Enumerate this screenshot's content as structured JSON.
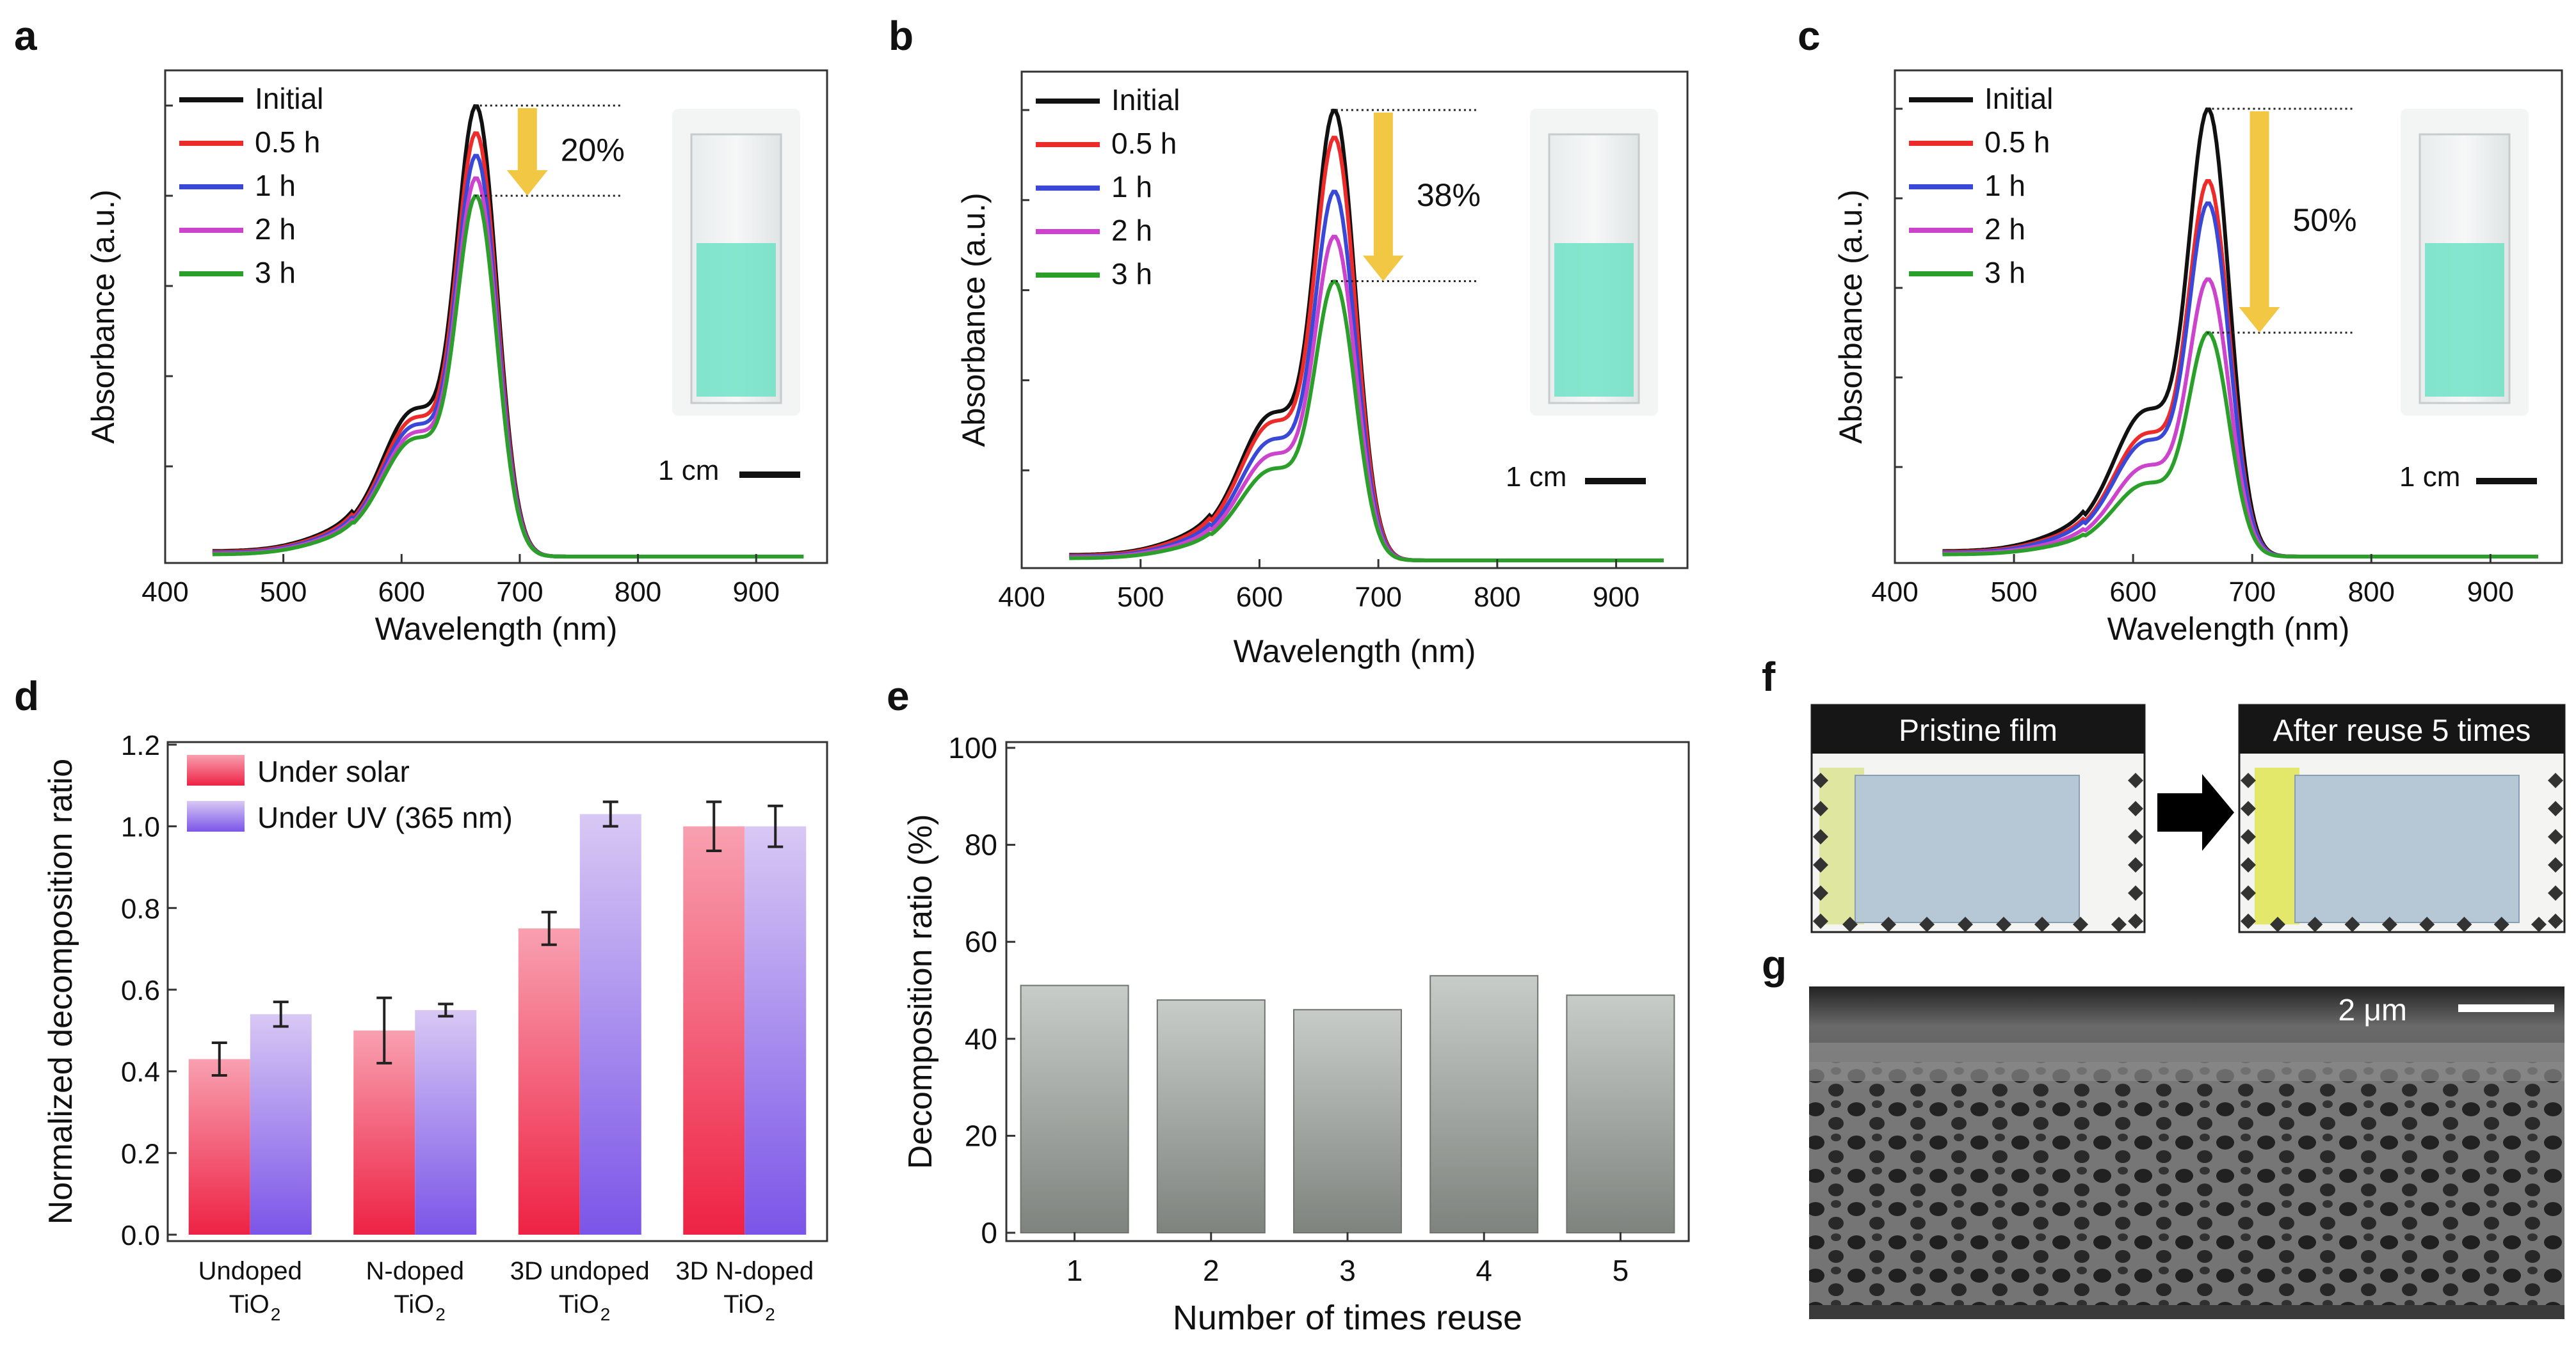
{
  "colors": {
    "initial": "#111111",
    "h05": "#ee2b2b",
    "h1": "#3a48d8",
    "h2": "#cc44cc",
    "h3": "#2aa02a",
    "arrow": "#f2c744",
    "solar_top": "#f8a0b0",
    "solar_bottom": "#ee2244",
    "uv_top": "#d8c8f4",
    "uv_bottom": "#7b55e8",
    "bar_e_top": "#c8ccc8",
    "bar_e_bottom": "#808580",
    "solution": "#5fe0c0"
  },
  "spectra": [
    {
      "panel_label": "a",
      "type": "line",
      "xlabel": "Wavelength (nm)",
      "ylabel": "Absorbance (a.u.)",
      "xlim": [
        400,
        960
      ],
      "xticks": [
        "400",
        "500",
        "600",
        "700",
        "800",
        "900"
      ],
      "legend": [
        "Initial",
        "0.5 h",
        "1 h",
        "2 h",
        "3 h"
      ],
      "peak_nm": 662,
      "peak_heights": [
        1.0,
        0.94,
        0.89,
        0.84,
        0.8
      ],
      "arrow_label": "20%",
      "scale_label": "1 cm"
    },
    {
      "panel_label": "b",
      "type": "line",
      "xlabel": "Wavelength (nm)",
      "ylabel": "Absorbance (a.u.)",
      "xlim": [
        400,
        960
      ],
      "xticks": [
        "400",
        "500",
        "600",
        "700",
        "800",
        "900"
      ],
      "legend": [
        "Initial",
        "0.5 h",
        "1 h",
        "2 h",
        "3 h"
      ],
      "peak_nm": 660,
      "peak_heights": [
        1.0,
        0.94,
        0.82,
        0.72,
        0.62
      ],
      "arrow_label": "38%",
      "scale_label": "1 cm"
    },
    {
      "panel_label": "c",
      "type": "line",
      "xlabel": "Wavelength (nm)",
      "ylabel": "Absorbance (a.u.)",
      "xlim": [
        400,
        960
      ],
      "xticks": [
        "400",
        "500",
        "600",
        "700",
        "800",
        "900"
      ],
      "legend": [
        "Initial",
        "0.5 h",
        "1 h",
        "2 h",
        "3 h"
      ],
      "peak_nm": 662,
      "peak_heights": [
        1.0,
        0.84,
        0.79,
        0.62,
        0.5
      ],
      "arrow_label": "50%",
      "scale_label": "1 cm"
    }
  ],
  "bar_d": {
    "panel_label": "d",
    "type": "bar",
    "ylabel": "Normalized decomposition ratio",
    "ylim": [
      0,
      1.2
    ],
    "yticks": [
      "0.0",
      "0.2",
      "0.4",
      "0.6",
      "0.8",
      "1.0",
      "1.2"
    ],
    "legend": [
      "Under solar",
      "Under UV (365 nm)"
    ],
    "categories": [
      {
        "line1": "Undoped",
        "line2": "TiO",
        "sub": "2"
      },
      {
        "line1": "N-doped",
        "line2": "TiO",
        "sub": "2"
      },
      {
        "line1": "3D undoped",
        "line2": "TiO",
        "sub": "2"
      },
      {
        "line1": "3D N-doped",
        "line2": "TiO",
        "sub": "2"
      }
    ],
    "series": [
      {
        "name": "Under solar",
        "values": [
          0.43,
          0.5,
          0.75,
          1.0
        ],
        "errors": [
          0.04,
          0.08,
          0.04,
          0.06
        ]
      },
      {
        "name": "Under UV (365 nm)",
        "values": [
          0.54,
          0.55,
          1.03,
          1.0
        ],
        "errors": [
          0.03,
          0.015,
          0.03,
          0.05
        ]
      }
    ]
  },
  "bar_e": {
    "panel_label": "e",
    "type": "bar",
    "xlabel": "Number of times reuse",
    "ylabel": "Decomposition ratio (%)",
    "ylim": [
      0,
      100
    ],
    "yticks": [
      "0",
      "20",
      "40",
      "60",
      "80",
      "100"
    ],
    "categories": [
      "1",
      "2",
      "3",
      "4",
      "5"
    ],
    "values": [
      51,
      48,
      46,
      53,
      49
    ]
  },
  "photos": {
    "panel_f": "f",
    "panel_g": "g",
    "left_title": "Pristine film",
    "right_title": "After reuse 5 times",
    "sem_scale": "2 μm"
  }
}
